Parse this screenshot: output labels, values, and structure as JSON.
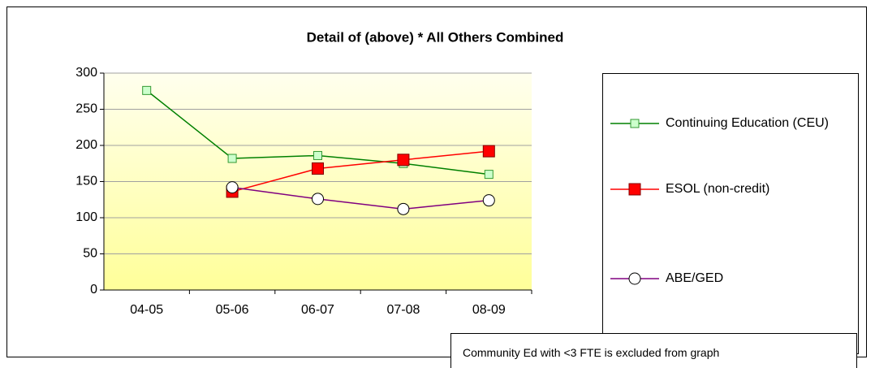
{
  "chart_data": {
    "type": "line",
    "title": "Detail of (above) * All Others Combined",
    "categories": [
      "04-05",
      "05-06",
      "06-07",
      "07-08",
      "08-09"
    ],
    "series": [
      {
        "name": "Continuing Education (CEU)",
        "color": "#008000",
        "marker": "square",
        "marker_fill": "#ccffcc",
        "marker_edge": "#339933",
        "values": [
          276,
          182,
          186,
          175,
          160
        ]
      },
      {
        "name": "ESOL (non-credit)",
        "color": "#ff0000",
        "marker": "square",
        "marker_fill": "#ff0000",
        "marker_edge": "#800000",
        "values": [
          null,
          136,
          168,
          180,
          192
        ]
      },
      {
        "name": "ABE/GED",
        "color": "#800080",
        "marker": "circle",
        "marker_fill": "#ffffff",
        "marker_edge": "#000000",
        "values": [
          null,
          142,
          126,
          112,
          124
        ]
      }
    ],
    "ylim": [
      0,
      300
    ],
    "yticks": [
      0,
      50,
      100,
      150,
      200,
      250,
      300
    ],
    "grid": true,
    "legend": "right",
    "note": "Community Ed with <3 FTE is excluded from graph"
  }
}
